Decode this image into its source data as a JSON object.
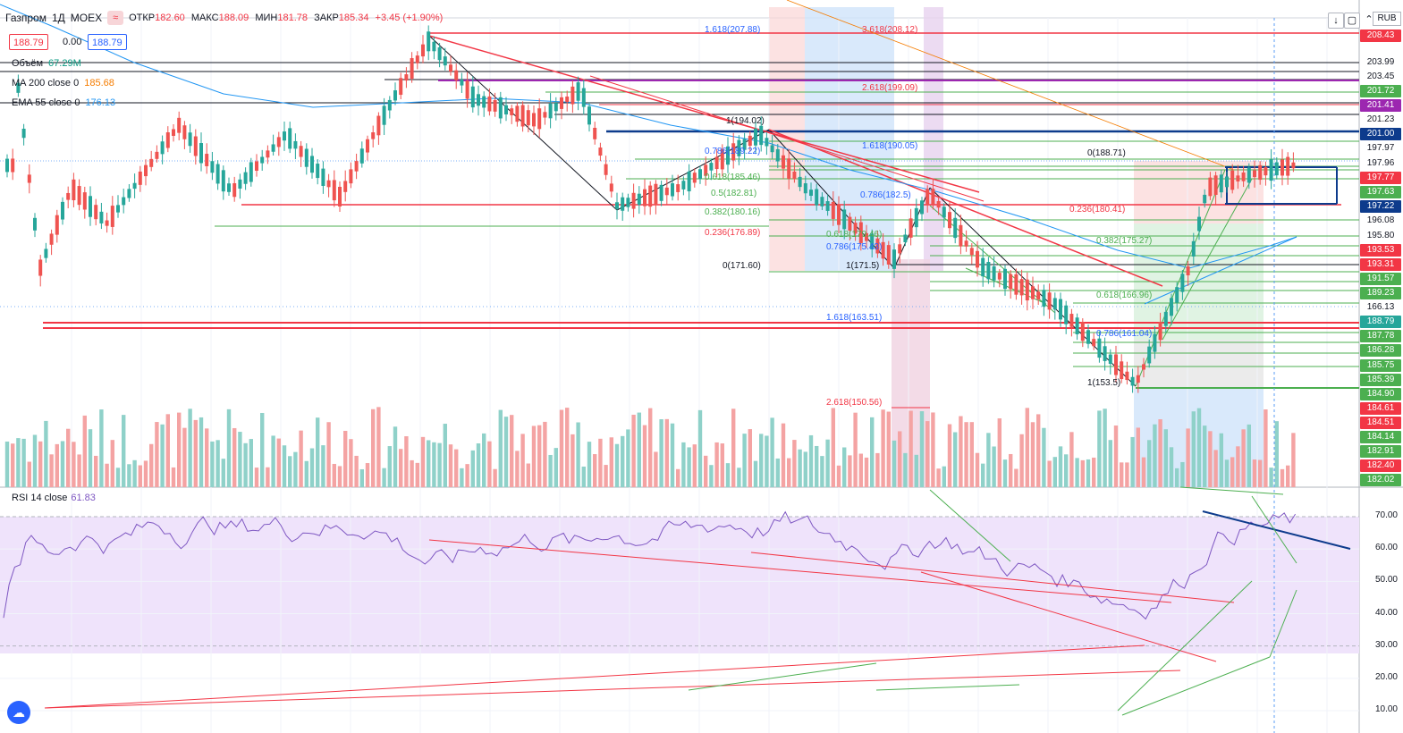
{
  "header": {
    "symbol": "Газпром",
    "interval": "1Д",
    "exchange": "MOEX",
    "open_label": "ОТКР",
    "open": "182.60",
    "high_label": "МАКС",
    "high": "188.09",
    "low_label": "МИН",
    "low": "181.78",
    "close_label": "ЗАКР",
    "close": "185.34",
    "change": "+3.45 (+1.90%)"
  },
  "price_boxes": {
    "sell": "188.79",
    "spread": "0.00",
    "buy": "188.79"
  },
  "legends": [
    {
      "name": "Объём",
      "value": "67.29M",
      "value_color": "#089981"
    },
    {
      "name": "MA 200 close 0",
      "value": "185.68",
      "value_color": "#f57c00"
    },
    {
      "name": "EMA 55 close 0",
      "value": "176.13",
      "value_color": "#2196f3"
    }
  ],
  "rsi": {
    "name": "RSI 14 close",
    "value": "61.83",
    "ticks": [
      "70.00",
      "60.00",
      "50.00",
      "40.00",
      "30.00",
      "20.00",
      "10.00"
    ],
    "tick_values": [
      70,
      60,
      50,
      40,
      30,
      20,
      10
    ]
  },
  "currency": "RUB",
  "price_axis": [
    {
      "text": "208.43",
      "bg": "#f23645",
      "fg": "#ffffff"
    },
    {
      "text": "203.99",
      "bg": "#ffffff",
      "fg": "#131722"
    },
    {
      "text": "203.45",
      "bg": "#ffffff",
      "fg": "#131722"
    },
    {
      "text": "201.72",
      "bg": "#4caf50",
      "fg": "#ffffff"
    },
    {
      "text": "201.41",
      "bg": "#9c27b0",
      "fg": "#ffffff"
    },
    {
      "text": "201.23",
      "bg": "#ffffff",
      "fg": "#131722"
    },
    {
      "text": "201.00",
      "bg": "#0d3b8c",
      "fg": "#ffffff"
    },
    {
      "text": "197.97",
      "bg": "#ffffff",
      "fg": "#131722"
    },
    {
      "text": "197.96",
      "bg": "#ffffff",
      "fg": "#131722"
    },
    {
      "text": "197.77",
      "bg": "#f23645",
      "fg": "#ffffff"
    },
    {
      "text": "197.63",
      "bg": "#4caf50",
      "fg": "#ffffff"
    },
    {
      "text": "197.22",
      "bg": "#0d3b8c",
      "fg": "#ffffff"
    },
    {
      "text": "196.08",
      "bg": "#ffffff",
      "fg": "#131722"
    },
    {
      "text": "195.80",
      "bg": "#ffffff",
      "fg": "#131722"
    },
    {
      "text": "193.53",
      "bg": "#f23645",
      "fg": "#ffffff"
    },
    {
      "text": "193.31",
      "bg": "#f23645",
      "fg": "#ffffff"
    },
    {
      "text": "191.57",
      "bg": "#4caf50",
      "fg": "#ffffff"
    },
    {
      "text": "189.23",
      "bg": "#4caf50",
      "fg": "#ffffff"
    },
    {
      "text": "166.13",
      "bg": "#ffffff",
      "fg": "#131722"
    },
    {
      "text": "188.79",
      "bg": "#26a69a",
      "fg": "#ffffff"
    },
    {
      "text": "187.78",
      "bg": "#4caf50",
      "fg": "#ffffff"
    },
    {
      "text": "186.28",
      "bg": "#4caf50",
      "fg": "#ffffff"
    },
    {
      "text": "185.75",
      "bg": "#4caf50",
      "fg": "#ffffff"
    },
    {
      "text": "185.39",
      "bg": "#4caf50",
      "fg": "#ffffff"
    },
    {
      "text": "184.90",
      "bg": "#4caf50",
      "fg": "#ffffff"
    },
    {
      "text": "184.61",
      "bg": "#f23645",
      "fg": "#ffffff"
    },
    {
      "text": "184.51",
      "bg": "#f23645",
      "fg": "#ffffff"
    },
    {
      "text": "184.14",
      "bg": "#4caf50",
      "fg": "#ffffff"
    },
    {
      "text": "182.91",
      "bg": "#4caf50",
      "fg": "#ffffff"
    },
    {
      "text": "182.40",
      "bg": "#f23645",
      "fg": "#ffffff"
    },
    {
      "text": "182.02",
      "bg": "#4caf50",
      "fg": "#ffffff"
    }
  ],
  "fib_labels": [
    {
      "text": "1.618(207.88)",
      "color": "#2962ff"
    },
    {
      "text": "3.618(208.12)",
      "color": "#f23645"
    },
    {
      "text": "2.618(199.09)",
      "color": "#f23645"
    },
    {
      "text": "1(194.02)",
      "color": "#131722"
    },
    {
      "text": "1.618(190.05)",
      "color": "#2962ff"
    },
    {
      "text": "0.786(189.22)",
      "color": "#2962ff"
    },
    {
      "text": "0.618(185.46)",
      "color": "#4caf50"
    },
    {
      "text": "0.5(182.81)",
      "color": "#4caf50"
    },
    {
      "text": "0.382(180.16)",
      "color": "#4caf50"
    },
    {
      "text": "0.236(176.89)",
      "color": "#f23645"
    },
    {
      "text": "0(171.60)",
      "color": "#131722"
    },
    {
      "text": "0.786(182.5)",
      "color": "#2962ff"
    },
    {
      "text": "0.618(179.46)",
      "color": "#4caf50"
    },
    {
      "text": "0.786(175.43)",
      "color": "#2962ff"
    },
    {
      "text": "1(171.5)",
      "color": "#131722"
    },
    {
      "text": "1.618(163.51)",
      "color": "#2962ff"
    },
    {
      "text": "2.618(150.56)",
      "color": "#f23645"
    },
    {
      "text": "0(188.71)",
      "color": "#131722"
    },
    {
      "text": "0.236(180.41)",
      "color": "#f23645"
    },
    {
      "text": "0.382(175.27)",
      "color": "#4caf50"
    },
    {
      "text": "0.618(166.96)",
      "color": "#4caf50"
    },
    {
      "text": "0.786(161.04)",
      "color": "#2962ff"
    },
    {
      "text": "1(153.5)",
      "color": "#131722"
    }
  ]
}
